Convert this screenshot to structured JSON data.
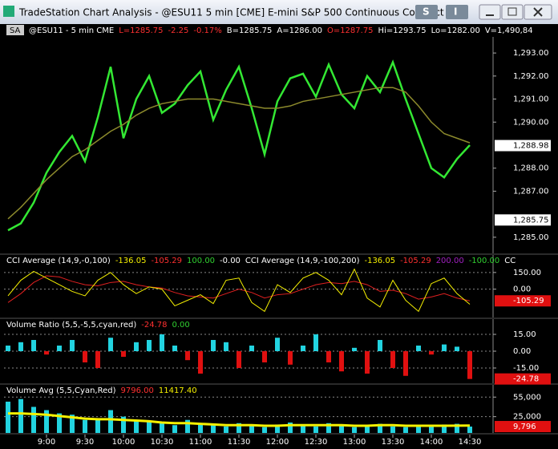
{
  "window": {
    "title": "TradeStation Chart Analysis - @ESU11 5 min [CME] E-mini S&P 500 Continuous Contract ...",
    "buttons": [
      "S",
      "I"
    ]
  },
  "header": {
    "symbol": "SA",
    "items": [
      {
        "text": "@ESU11 - 5 min  CME",
        "color": "#ffffff"
      },
      {
        "text": "L=1285.75",
        "color": "#ff3030"
      },
      {
        "text": "-2.25",
        "color": "#ff3030"
      },
      {
        "text": "-0.17%",
        "color": "#ff3030"
      },
      {
        "text": "B=1285.75",
        "color": "#ffffff"
      },
      {
        "text": "A=1286.00",
        "color": "#ffffff"
      },
      {
        "text": "O=1287.75",
        "color": "#ff3030"
      },
      {
        "text": "Hi=1293.75",
        "color": "#ffffff"
      },
      {
        "text": "Lo=1282.00",
        "color": "#ffffff"
      },
      {
        "text": "V=1,490,84",
        "color": "#ffffff"
      }
    ]
  },
  "chart_data": [
    {
      "type": "line",
      "series": [
        {
          "color": "#33e833",
          "values": [
            1285.3,
            1285.6,
            1286.5,
            1287.8,
            1288.7,
            1289.4,
            1288.3,
            1290.2,
            1292.4,
            1289.3,
            1291.0,
            1292.0,
            1290.4,
            1290.8,
            1291.6,
            1292.2,
            1290.1,
            1291.4,
            1292.4,
            1290.6,
            1288.6,
            1290.9,
            1291.9,
            1292.1,
            1291.1,
            1292.5,
            1291.2,
            1290.6,
            1292.0,
            1291.3,
            1292.6,
            1291.0,
            1289.5,
            1288.0,
            1287.6,
            1288.4,
            1289.0
          ]
        },
        {
          "color": "#8c8a2c",
          "values": [
            1285.8,
            1286.3,
            1286.9,
            1287.5,
            1288.0,
            1288.5,
            1288.8,
            1289.2,
            1289.6,
            1289.9,
            1290.3,
            1290.6,
            1290.8,
            1290.9,
            1291.0,
            1291.0,
            1291.0,
            1290.9,
            1290.8,
            1290.7,
            1290.6,
            1290.6,
            1290.7,
            1290.9,
            1291.0,
            1291.1,
            1291.2,
            1291.3,
            1291.4,
            1291.5,
            1291.5,
            1291.3,
            1290.7,
            1290.0,
            1289.5,
            1289.3,
            1289.1
          ]
        }
      ],
      "ylim": [
        1284.3,
        1293.7
      ],
      "yticks": [
        {
          "value": 1293,
          "label": "1,293.00"
        },
        {
          "value": 1292,
          "label": "1,292.00"
        },
        {
          "value": 1291,
          "label": "1,291.00"
        },
        {
          "value": 1290,
          "label": "1,290.00"
        },
        {
          "value": 1288,
          "label": "1,288.00"
        },
        {
          "value": 1287,
          "label": "1,287.00"
        },
        {
          "value": 1285,
          "label": "1,285.00"
        }
      ],
      "markers": [
        {
          "value": 1288.98,
          "label": "1,288.98",
          "color": "#ffffff"
        },
        {
          "value": 1285.75,
          "label": "1,285.75",
          "color": "#ffffff"
        }
      ]
    },
    {
      "type": "line",
      "title_items": [
        {
          "text": "CCI Average (14,9,-0,100)",
          "color": "#ffffff"
        },
        {
          "text": "-136.05",
          "color": "#f5f000"
        },
        {
          "text": "-105.29",
          "color": "#ff3030"
        },
        {
          "text": "100.00",
          "color": "#30d030"
        },
        {
          "text": "-0.00",
          "color": "#ffffff"
        },
        {
          "text": "CCI Average (14,9,-100,200)",
          "color": "#ffffff"
        },
        {
          "text": "-136.05",
          "color": "#f5f000"
        },
        {
          "text": "-105.29",
          "color": "#ff3030"
        },
        {
          "text": "200.00",
          "color": "#a020c0"
        },
        {
          "text": "-100.00",
          "color": "#30d030"
        },
        {
          "text": "CC",
          "color": "#ffffff"
        }
      ],
      "series": [
        {
          "color": "#f5f000",
          "values": [
            -60,
            80,
            160,
            100,
            40,
            -20,
            -60,
            80,
            150,
            40,
            -40,
            20,
            0,
            -150,
            -100,
            -50,
            -130,
            80,
            100,
            -120,
            -200,
            40,
            -30,
            100,
            150,
            80,
            -50,
            180,
            -80,
            -160,
            80,
            -100,
            -200,
            50,
            100,
            -40,
            -136.05
          ]
        },
        {
          "color": "#e02020",
          "values": [
            -120,
            -40,
            60,
            120,
            110,
            70,
            40,
            30,
            60,
            70,
            40,
            20,
            10,
            -30,
            -60,
            -70,
            -80,
            -40,
            0,
            -30,
            -80,
            -50,
            -40,
            0,
            40,
            60,
            50,
            70,
            40,
            -20,
            -10,
            -40,
            -90,
            -70,
            -40,
            -80,
            -105.29
          ]
        }
      ],
      "ylim": [
        -255,
        307.5
      ],
      "yticks": [
        {
          "value": 150,
          "label": "150.00"
        },
        {
          "value": 0,
          "label": "0.00"
        }
      ],
      "markers": [
        {
          "value": -105.29,
          "label": "-105.29",
          "color": "#e01010"
        }
      ]
    },
    {
      "type": "bar",
      "title_items": [
        {
          "text": "Volume Ratio (5,5,-5,5,cyan,red)",
          "color": "#ffffff"
        },
        {
          "text": "-24.78",
          "color": "#ff3030"
        },
        {
          "text": "0.00",
          "color": "#30d030"
        }
      ],
      "values": [
        5,
        8,
        10,
        -3,
        5,
        10,
        -10,
        -15,
        12,
        -5,
        8,
        10,
        15,
        5,
        -8,
        -20,
        10,
        8,
        -15,
        5,
        -10,
        12,
        -12,
        5,
        15,
        -10,
        -18,
        3,
        -20,
        10,
        -15,
        -22,
        5,
        -3,
        6,
        4,
        -24.78
      ],
      "up_color": "#22d3e0",
      "down_color": "#e01010",
      "ylim": [
        -28.6,
        28.6
      ],
      "yticks": [
        {
          "value": 15,
          "label": "15.00"
        },
        {
          "value": 0,
          "label": "0.00"
        },
        {
          "value": -15,
          "label": "-15.00"
        }
      ],
      "markers": [
        {
          "value": -24.78,
          "label": "-24.78",
          "color": "#e01010"
        }
      ]
    },
    {
      "type": "bar",
      "title_items": [
        {
          "text": "Volume Avg (5,5,Cyan,Red)",
          "color": "#ffffff"
        },
        {
          "text": "9796.00",
          "color": "#ff3030"
        },
        {
          "text": "11417.40",
          "color": "#f5f000"
        }
      ],
      "categories": [
        null,
        null,
        null,
        "9:00",
        null,
        null,
        "9:30",
        null,
        null,
        "10:00",
        null,
        null,
        "10:30",
        null,
        null,
        "11:00",
        null,
        null,
        "11:30",
        null,
        null,
        "12:00",
        null,
        null,
        "12:30",
        null,
        null,
        "13:00",
        null,
        null,
        "13:30",
        null,
        null,
        "14:00",
        null,
        null,
        "14:30"
      ],
      "series": [
        {
          "type": "bar",
          "color": "#22d3e0",
          "values": [
            48000,
            52000,
            40000,
            35000,
            30000,
            28000,
            20000,
            22000,
            35000,
            25000,
            20000,
            18000,
            15000,
            12000,
            20000,
            14000,
            12000,
            10000,
            15000,
            11000,
            9000,
            13000,
            16000,
            12000,
            10000,
            15000,
            11000,
            9000,
            12000,
            14000,
            10000,
            9000,
            12000,
            11000,
            13000,
            14000,
            9796
          ]
        },
        {
          "type": "line",
          "color": "#f5f000",
          "values": [
            30000,
            30000,
            29000,
            28000,
            26000,
            24000,
            22000,
            21000,
            21000,
            20000,
            19000,
            18000,
            16000,
            15000,
            15000,
            14000,
            13000,
            12000,
            12000,
            12000,
            11000,
            11000,
            12000,
            12000,
            12000,
            12000,
            12000,
            11000,
            11000,
            12000,
            12000,
            11000,
            11000,
            11000,
            11000,
            11200,
            11417.4
          ]
        }
      ],
      "ylim": [
        0,
        73750
      ],
      "yticks": [
        {
          "value": 55000,
          "label": "55,000"
        },
        {
          "value": 25000,
          "label": "25,000"
        }
      ],
      "markers": [
        {
          "value": 9796,
          "label": "9,796",
          "color": "#e01010"
        }
      ]
    }
  ]
}
